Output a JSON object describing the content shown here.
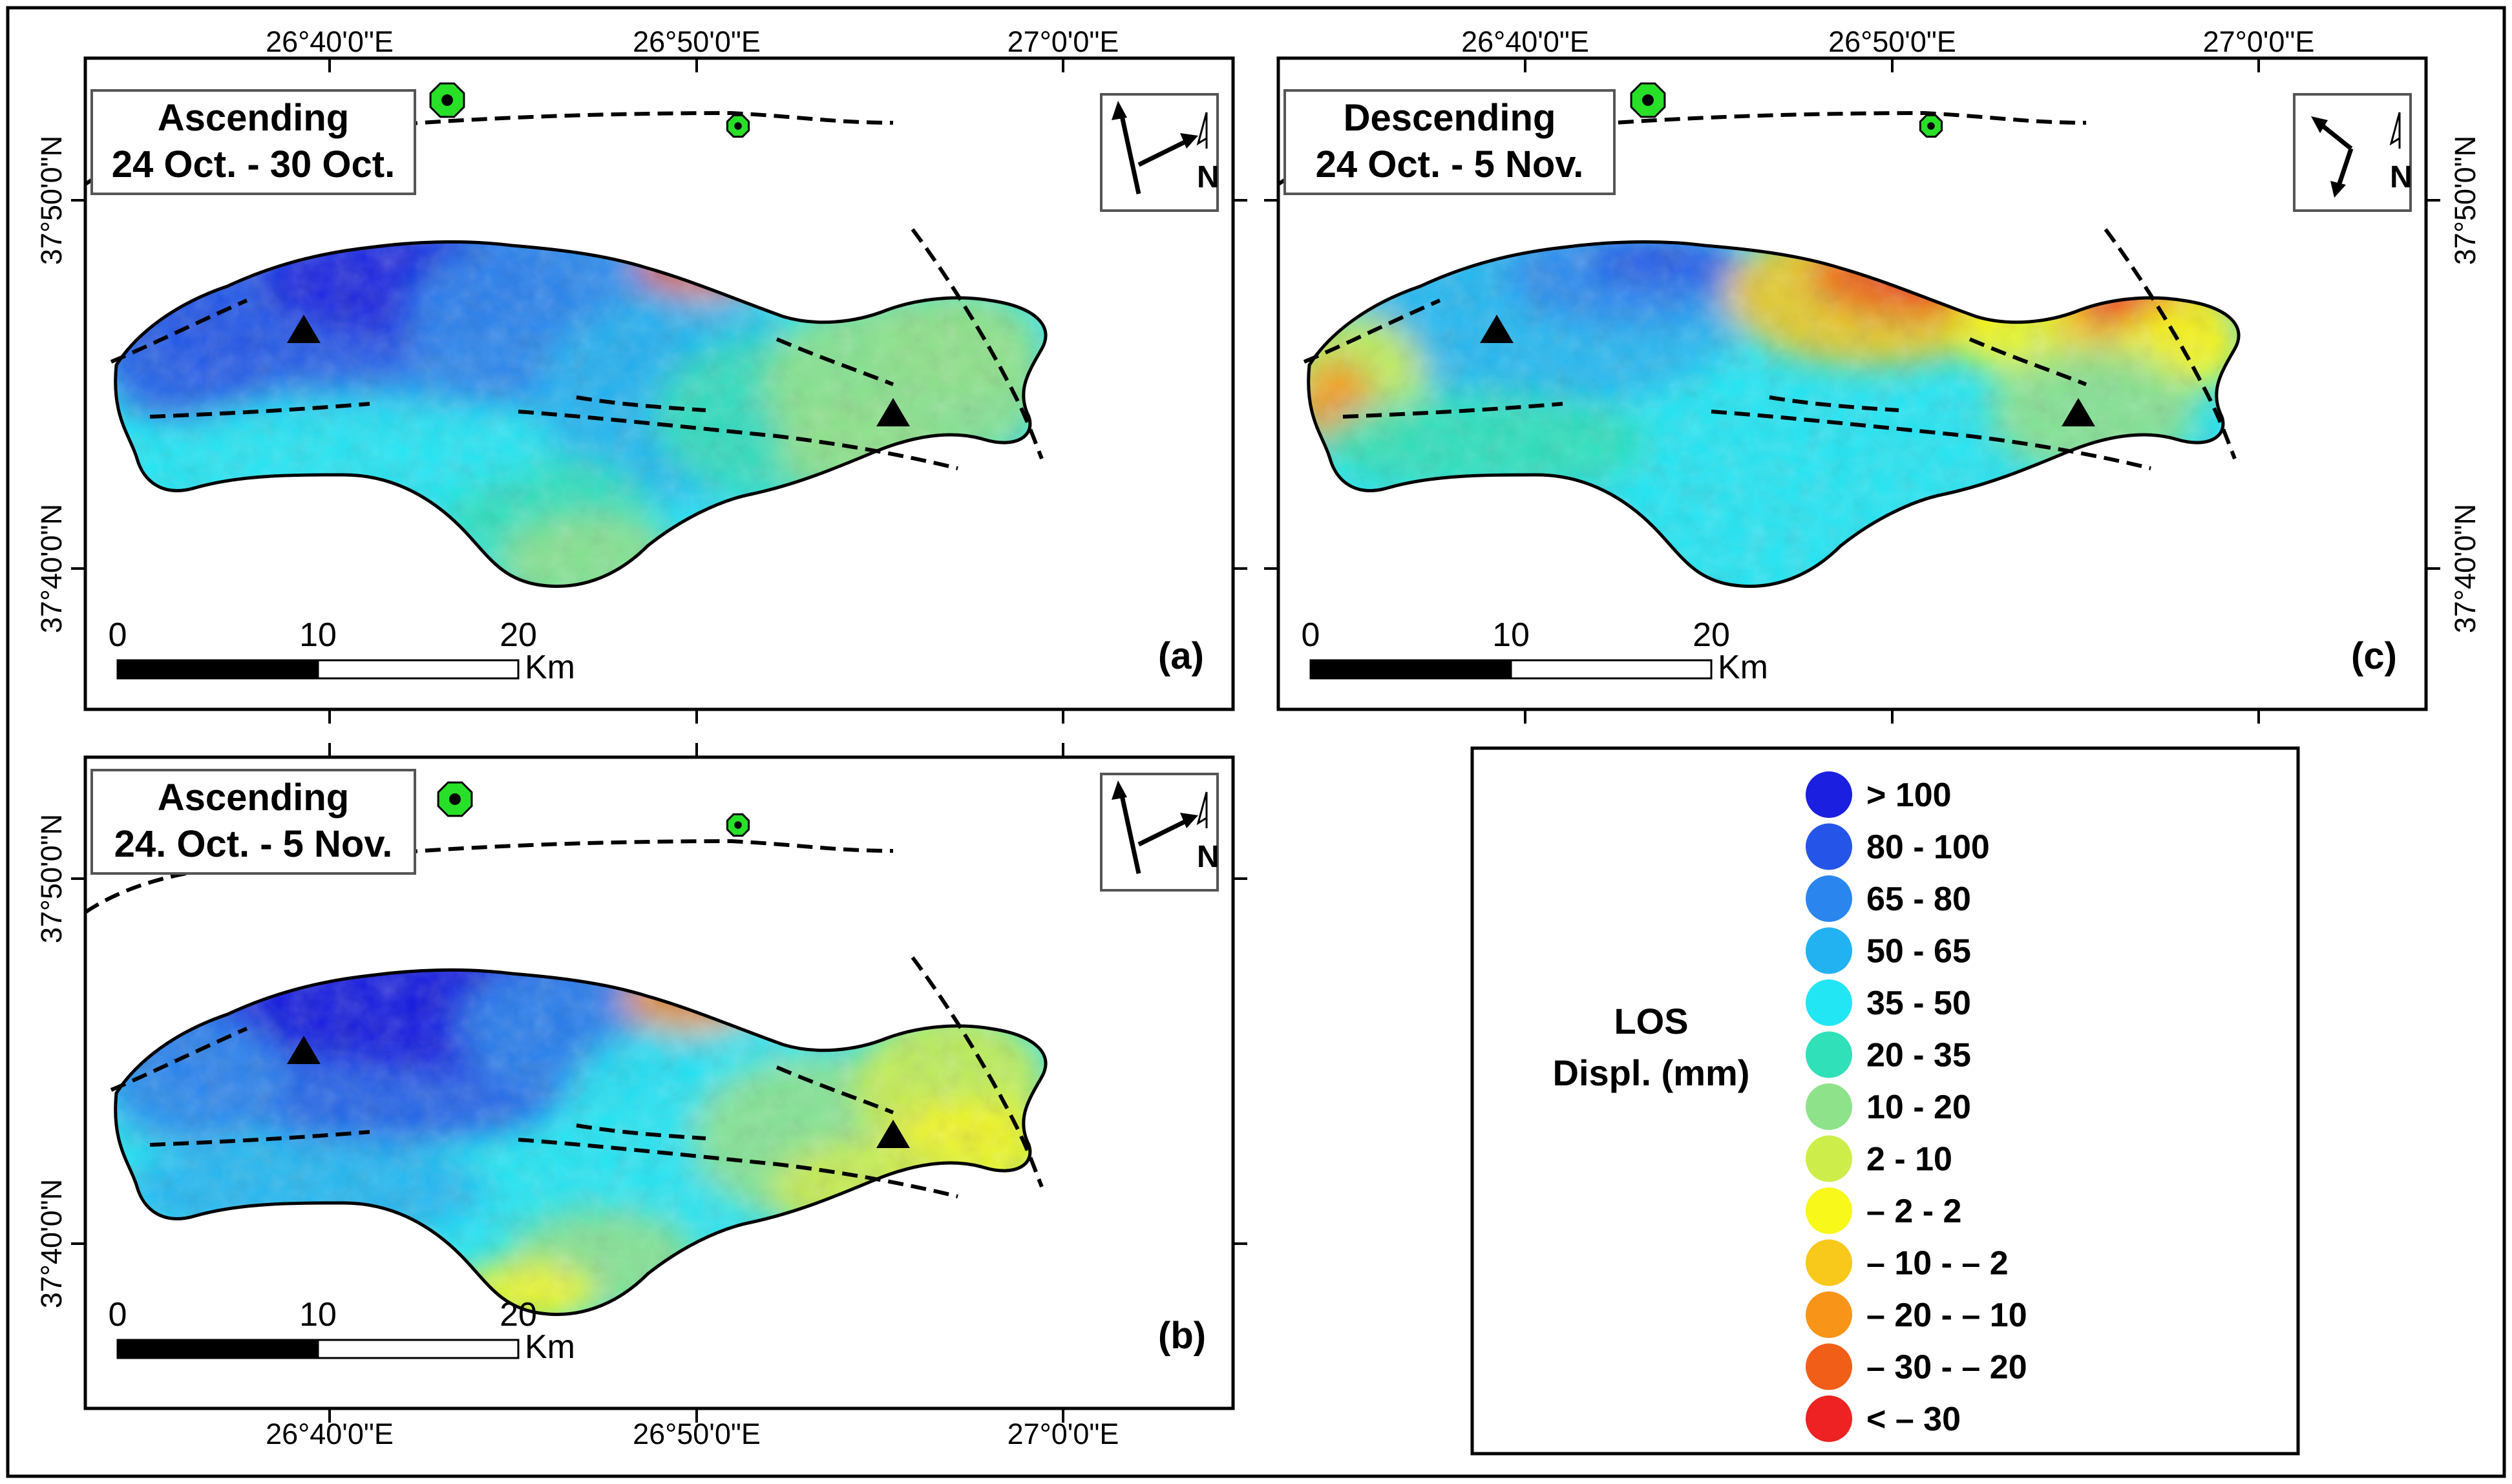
{
  "panels": [
    {
      "id": "a",
      "title_line1": "Ascending",
      "title_line2": "24 Oct. - 30 Oct.",
      "label": "(a)",
      "pattern": "asc_short"
    },
    {
      "id": "b",
      "title_line1": "Ascending",
      "title_line2": "24. Oct. - 5 Nov.",
      "label": "(b)",
      "pattern": "asc_long"
    },
    {
      "id": "c",
      "title_line1": "Descending",
      "title_line2": "24 Oct. - 5 Nov.",
      "label": "(c)",
      "pattern": "desc"
    }
  ],
  "axes": {
    "lon_ticks": [
      "26°40'0\"E",
      "26°50'0\"E",
      "27°0'0\"E"
    ],
    "lat_ticks": [
      "37°50'0\"N",
      "37°40'0\"N"
    ]
  },
  "scale_bar": {
    "ticks": [
      "0",
      "10",
      "20"
    ],
    "unit": "Km"
  },
  "north_arrow": {
    "letter": "N"
  },
  "legend": {
    "title_line1": "LOS",
    "title_line2": "Displ. (mm)",
    "classes": [
      {
        "label": "> 100",
        "color": "#1a1fe0"
      },
      {
        "label": "80 - 100",
        "color": "#2555e8"
      },
      {
        "label": "65 - 80",
        "color": "#2a86ee"
      },
      {
        "label": "50 - 65",
        "color": "#22b2f2"
      },
      {
        "label": "35 - 50",
        "color": "#22e6f4"
      },
      {
        "label": "20 - 35",
        "color": "#2fe0b8"
      },
      {
        "label": "10 - 20",
        "color": "#8ee28a"
      },
      {
        "label": "2 - 10",
        "color": "#cdee4a"
      },
      {
        "label": "– 2 - 2",
        "color": "#f8f81a"
      },
      {
        "label": "– 10 - – 2",
        "color": "#f8c81a"
      },
      {
        "label": "– 20 - – 10",
        "color": "#f89418"
      },
      {
        "label": "– 30 - – 20",
        "color": "#f05e18"
      },
      {
        "label": "< – 30",
        "color": "#ee2222"
      }
    ]
  },
  "markers": {
    "seismic_station_color": "#28e028",
    "gnss_marker_color": "#000000"
  }
}
